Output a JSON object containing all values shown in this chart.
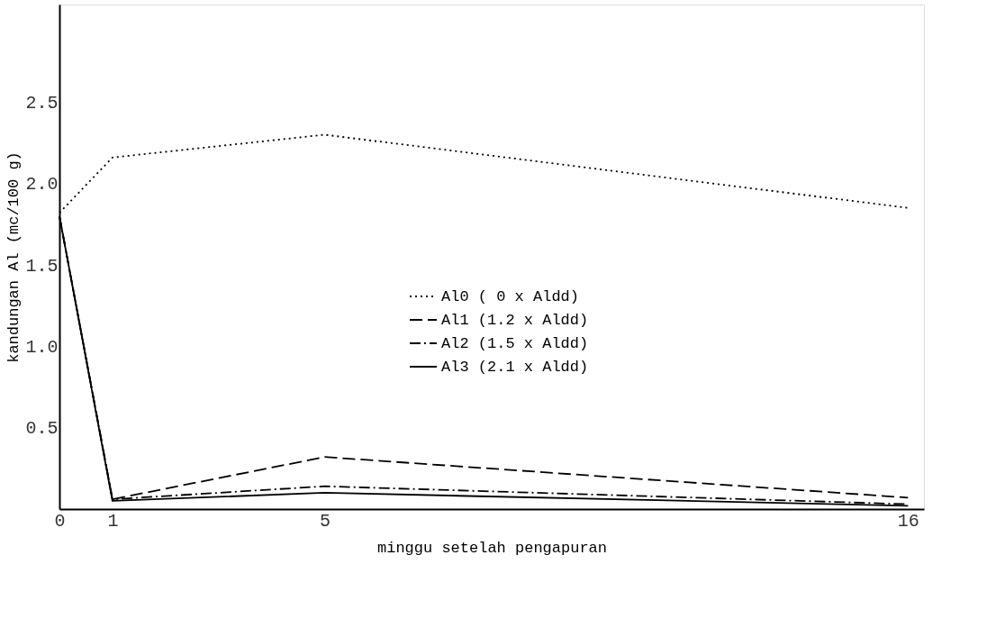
{
  "chart_data": {
    "type": "line",
    "xlabel": "minggu setelah pengapuran",
    "ylabel": "kandungan Al (mc/100 g)",
    "x": [
      0,
      1,
      5,
      16
    ],
    "xlim": [
      0,
      16.3
    ],
    "xticks": [
      0,
      1,
      5,
      16
    ],
    "ylim": [
      0,
      3.1
    ],
    "yticks": [
      0.5,
      {
        "value": 1,
        "label": "1.0"
      },
      1.5,
      {
        "value": 2,
        "label": "2.0"
      },
      2.5
    ],
    "series": [
      {
        "name": "Al0 ( 0 x Aldd)",
        "color": "#000000",
        "line_style": "dotted",
        "values": [
          1.82,
          2.16,
          2.3,
          1.85
        ]
      },
      {
        "name": "Al1 (1.2 x Aldd)",
        "color": "#000000",
        "line_style": "dashed",
        "values": [
          1.8,
          0.06,
          0.32,
          0.07
        ]
      },
      {
        "name": "Al2 (1.5 x Aldd)",
        "color": "#000000",
        "line_style": "dashdot",
        "values": [
          1.8,
          0.06,
          0.14,
          0.03
        ]
      },
      {
        "name": "Al3 (2.1 x Aldd)",
        "color": "#000000",
        "line_style": "solid",
        "values": [
          1.8,
          0.05,
          0.1,
          0.02
        ]
      }
    ],
    "legend": "bottom",
    "grid": false,
    "marker": "none"
  }
}
